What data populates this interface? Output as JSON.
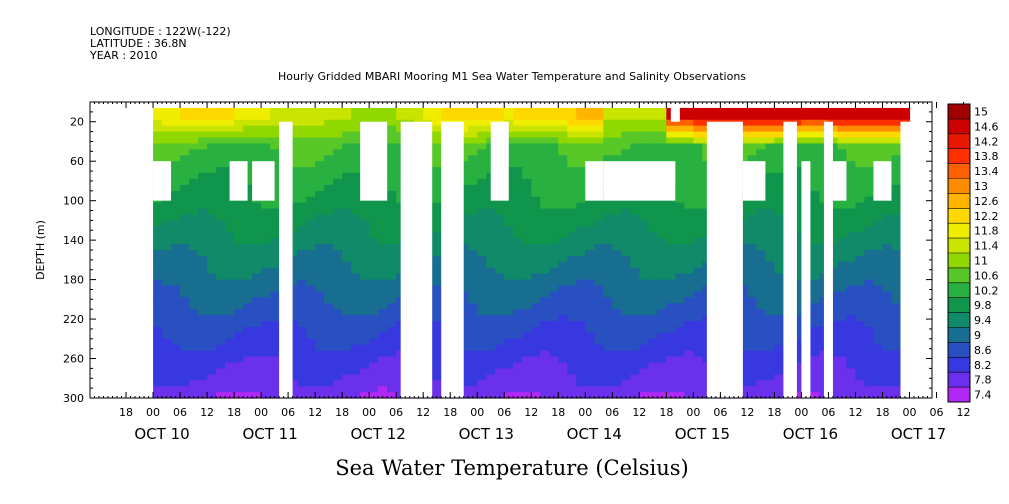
{
  "header": {
    "longitude": "LONGITUDE : 122W(-122)",
    "latitude": "LATITUDE : 36.8N",
    "year": "YEAR : 2010",
    "title": "Hourly Gridded MBARI Mooring M1 Sea Water Temperature and Salinity Observations"
  },
  "chart_data": {
    "type": "heatmap",
    "title": "Hourly Gridded MBARI Mooring M1 Sea Water Temperature and Salinity Observations",
    "caption": "Sea Water Temperature (Celsius)",
    "xlabel": "",
    "ylabel": "DEPTH (m)",
    "ylim": [
      0,
      300
    ],
    "y_inverted": true,
    "xlim_hours": [
      -14,
      173
    ],
    "y_ticks": [
      20,
      60,
      100,
      140,
      180,
      220,
      260,
      300
    ],
    "x_hour_ticks": [
      "18",
      "00",
      "06",
      "12",
      "18",
      "00",
      "06",
      "12",
      "18",
      "00",
      "06",
      "12",
      "18",
      "00",
      "06",
      "12",
      "18",
      "00",
      "06",
      "12",
      "18",
      "00",
      "06",
      "12",
      "18",
      "00",
      "06",
      "12",
      "18",
      "00",
      "06",
      "12"
    ],
    "x_day_labels": [
      "OCT 10",
      "OCT 11",
      "OCT 12",
      "OCT 13",
      "OCT 14",
      "OCT 15",
      "OCT 16",
      "OCT 17"
    ],
    "colorbar_levels": [
      "15",
      "14.6",
      "14.2",
      "13.8",
      "13.4",
      "13",
      "12.6",
      "12.2",
      "11.8",
      "11.4",
      "11",
      "10.6",
      "10.2",
      "9.8",
      "9.4",
      "9",
      "8.6",
      "8.2",
      "7.8",
      "7.4"
    ],
    "colorbar_colors": [
      "#a00000",
      "#cc0000",
      "#e81800",
      "#ff3000",
      "#ff6000",
      "#ff8c00",
      "#ffb400",
      "#ffd800",
      "#f0ee00",
      "#c8e400",
      "#90d800",
      "#58c828",
      "#28b040",
      "#10964c",
      "#108a68",
      "#186e90",
      "#2850c0",
      "#3838e0",
      "#6a30ec",
      "#b028f4"
    ],
    "zlim": [
      7.4,
      15
    ]
  }
}
